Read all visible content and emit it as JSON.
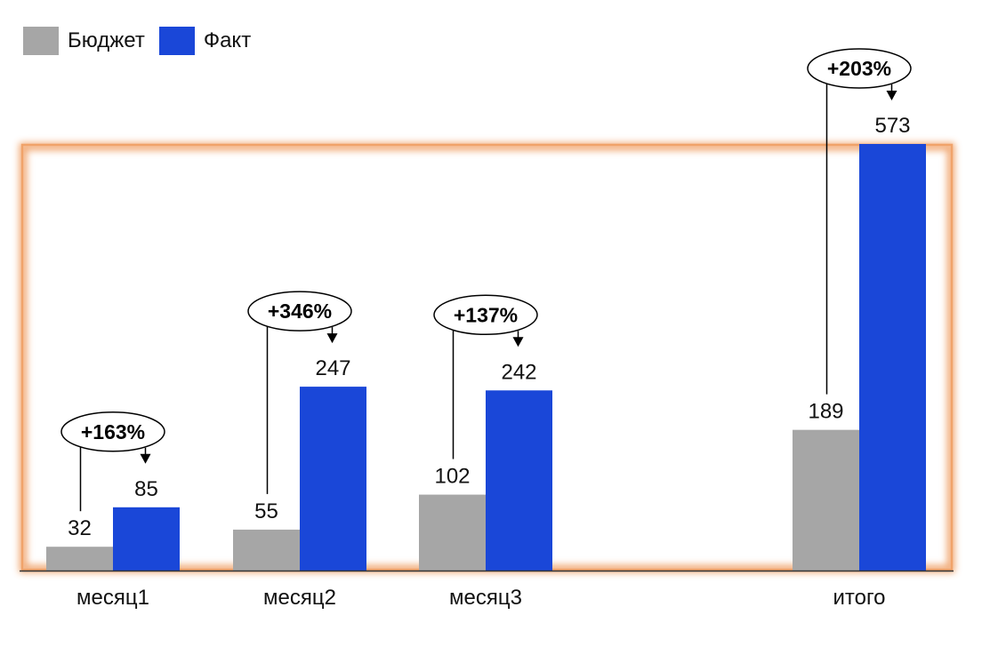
{
  "chart_data": {
    "type": "bar",
    "categories": [
      "месяц1",
      "месяц2",
      "месяц3",
      "итого"
    ],
    "series": [
      {
        "name": "Бюджет",
        "color": "#a6a6a6",
        "values": [
          32,
          55,
          102,
          189
        ]
      },
      {
        "name": "Факт",
        "color": "#1a47d8",
        "values": [
          85,
          247,
          242,
          573
        ]
      }
    ],
    "annotations": [
      "+163%",
      "+346%",
      "+137%",
      "+203%"
    ],
    "legend_position": "top-left",
    "ylim": [
      0,
      573
    ],
    "grid": false,
    "highlight_color": "#f0a36a"
  }
}
